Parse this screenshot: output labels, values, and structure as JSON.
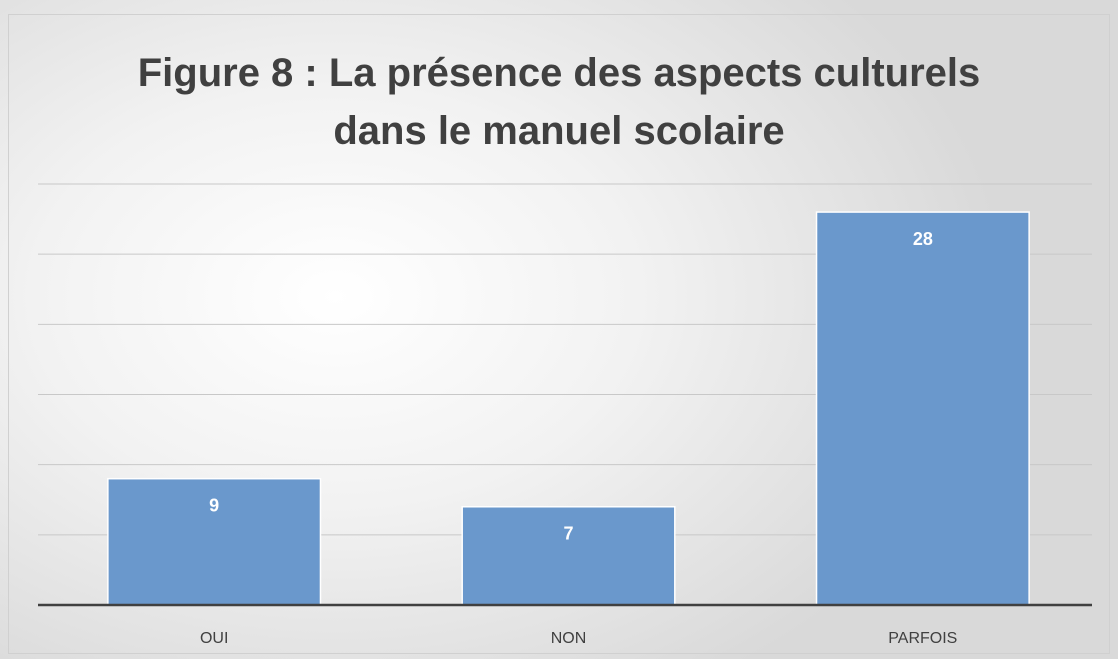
{
  "chart_data": {
    "type": "bar",
    "title": "Figure 8 : La présence des aspects culturels dans le manuel scolaire",
    "categories": [
      "OUI",
      "NON",
      "PARFOIS"
    ],
    "values": [
      9,
      7,
      28
    ],
    "color": "#6a98cc",
    "ylim": [
      0,
      30
    ],
    "yticks": [
      0,
      5,
      10,
      15,
      20,
      25,
      30
    ],
    "grid": true
  }
}
